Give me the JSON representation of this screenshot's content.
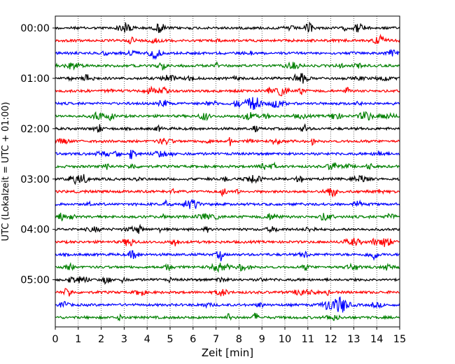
{
  "chart_data": {
    "type": "line",
    "xlabel": "Zeit  [min]",
    "ylabel": "UTC (Lokalzeit = UTC + 01:00)",
    "xlim": [
      0,
      15
    ],
    "x_ticks": [
      0,
      1,
      2,
      3,
      4,
      5,
      6,
      7,
      8,
      9,
      10,
      11,
      12,
      13,
      14,
      15
    ],
    "x_grid": true,
    "y_ticks": [
      {
        "label": "00:00",
        "trace": 0
      },
      {
        "label": "01:00",
        "trace": 4
      },
      {
        "label": "02:00",
        "trace": 8
      },
      {
        "label": "03:00",
        "trace": 12
      },
      {
        "label": "04:00",
        "trace": 16
      },
      {
        "label": "05:00",
        "trace": 20
      }
    ],
    "trace_colors": [
      "#000000",
      "#ff0000",
      "#0000ff",
      "#008000"
    ],
    "trace_count": 24,
    "trace_minutes": 15
  }
}
